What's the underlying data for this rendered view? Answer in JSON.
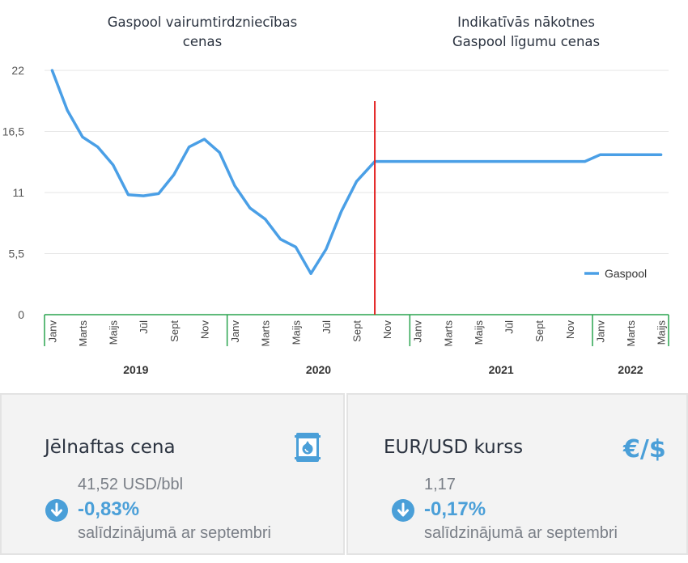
{
  "chart_data": {
    "type": "line",
    "title_left": [
      "Gaspool vairumtirdzniecības",
      "cenas"
    ],
    "title_right": [
      "Indikatīvās nākotnes",
      "Gaspool līgumu cenas"
    ],
    "y_ticks": [
      "22",
      "16,5",
      "11",
      "5,5",
      "0"
    ],
    "ylim": [
      0,
      22
    ],
    "months_per_year": [
      12,
      12,
      12,
      5
    ],
    "month_tick_labels": [
      "Janv",
      "Marts",
      "Maijs",
      "Jūl",
      "Sept",
      "Nov",
      "Janv",
      "Marts",
      "Maijs",
      "Jūl",
      "Sept",
      "Nov",
      "Janv",
      "Marts",
      "Maijs",
      "Jūl",
      "Sept",
      "Nov",
      "Janv",
      "Marts",
      "Maijs"
    ],
    "years": [
      "2019",
      "2020",
      "2021",
      "2022"
    ],
    "split_after_month_index": 21.2,
    "series": [
      {
        "name": "Gaspool",
        "color": "#4a9fe6",
        "points": [
          [
            0,
            22
          ],
          [
            1,
            18.4
          ],
          [
            2,
            16
          ],
          [
            3,
            15.1
          ],
          [
            4,
            13.5
          ],
          [
            5,
            10.8
          ],
          [
            6,
            10.7
          ],
          [
            7,
            10.9
          ],
          [
            8,
            12.6
          ],
          [
            9,
            15.1
          ],
          [
            10,
            15.8
          ],
          [
            11,
            14.6
          ],
          [
            12,
            11.6
          ],
          [
            13,
            9.6
          ],
          [
            14,
            8.6
          ],
          [
            15,
            6.8
          ],
          [
            16,
            6.1
          ],
          [
            17,
            3.7
          ],
          [
            18,
            5.9
          ],
          [
            19,
            9.3
          ],
          [
            20,
            12
          ],
          [
            21.2,
            13.8
          ],
          [
            22,
            13.8
          ],
          [
            23,
            13.8
          ],
          [
            24,
            13.8
          ],
          [
            25,
            13.8
          ],
          [
            26,
            13.8
          ],
          [
            27,
            13.8
          ],
          [
            28,
            13.8
          ],
          [
            29,
            13.8
          ],
          [
            30,
            13.8
          ],
          [
            31,
            13.8
          ],
          [
            32,
            13.8
          ],
          [
            33,
            13.8
          ],
          [
            34,
            13.8
          ],
          [
            35,
            13.8
          ],
          [
            36,
            14.4
          ],
          [
            37,
            14.4
          ],
          [
            38,
            14.4
          ],
          [
            39,
            14.4
          ],
          [
            40,
            14.4
          ]
        ]
      }
    ],
    "legend": "Gaspool",
    "legend_position": "right",
    "split_line_color": "#e32222",
    "axis_color": "#2aa44f"
  },
  "cards": {
    "oil": {
      "title": "Jēlnaftas cena",
      "value": "41,52 USD/bbl",
      "change": "-0,83%",
      "compare": "salīdzinājumā ar septembri",
      "icon": "oil-barrel-icon"
    },
    "fx": {
      "title": "EUR/USD kurss",
      "value": "1,17",
      "change": "-0,17%",
      "compare": "salīdzinājumā ar septembri",
      "icon_text": "€/$"
    }
  },
  "colors": {
    "accent": "#4a9fd8",
    "text": "#2b3340",
    "muted": "#7a7f87"
  }
}
